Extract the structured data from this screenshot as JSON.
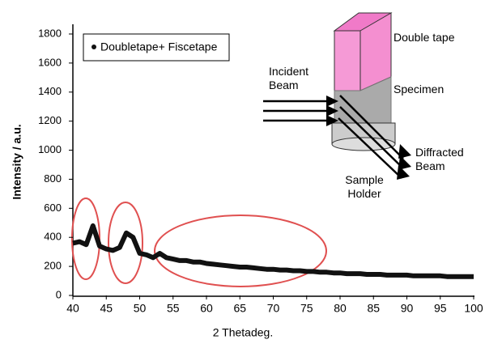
{
  "chart_data": {
    "type": "line",
    "x_label": "2 Thetadeg.",
    "y_label": "Intensity / a.u.",
    "x": [
      40,
      41,
      42,
      43,
      44,
      45,
      46,
      47,
      48,
      49,
      50,
      51,
      52,
      53,
      54,
      55,
      56,
      57,
      58,
      59,
      60,
      61,
      62,
      63,
      64,
      65,
      66,
      67,
      68,
      69,
      70,
      71,
      72,
      73,
      74,
      75,
      76,
      77,
      78,
      79,
      80,
      81,
      82,
      83,
      84,
      85,
      86,
      87,
      88,
      89,
      90,
      91,
      92,
      93,
      94,
      95,
      96,
      97,
      98,
      99,
      100
    ],
    "series": [
      {
        "name": "Doubletape+ Fiscetape",
        "color": "#111111",
        "values": [
          360,
          370,
          350,
          480,
          340,
          320,
          310,
          330,
          430,
          400,
          290,
          280,
          260,
          290,
          260,
          250,
          240,
          240,
          230,
          230,
          220,
          215,
          210,
          205,
          200,
          195,
          195,
          190,
          185,
          180,
          180,
          175,
          175,
          170,
          170,
          165,
          165,
          160,
          160,
          155,
          155,
          150,
          150,
          150,
          145,
          145,
          145,
          140,
          140,
          140,
          140,
          135,
          135,
          135,
          135,
          135,
          130,
          130,
          130,
          130,
          130
        ]
      }
    ],
    "xlim": [
      40,
      100
    ],
    "xticks": [
      40,
      45,
      50,
      55,
      60,
      65,
      70,
      75,
      80,
      85,
      90,
      95,
      100
    ],
    "ylim": [
      0,
      1800
    ],
    "yticks": [
      0,
      200,
      400,
      600,
      800,
      1000,
      1200,
      1400,
      1600,
      1800
    ],
    "annotations": [
      "Double tape",
      "Incident Beam",
      "Specimen",
      "Diffracted Beam",
      "Sample Holder"
    ]
  }
}
